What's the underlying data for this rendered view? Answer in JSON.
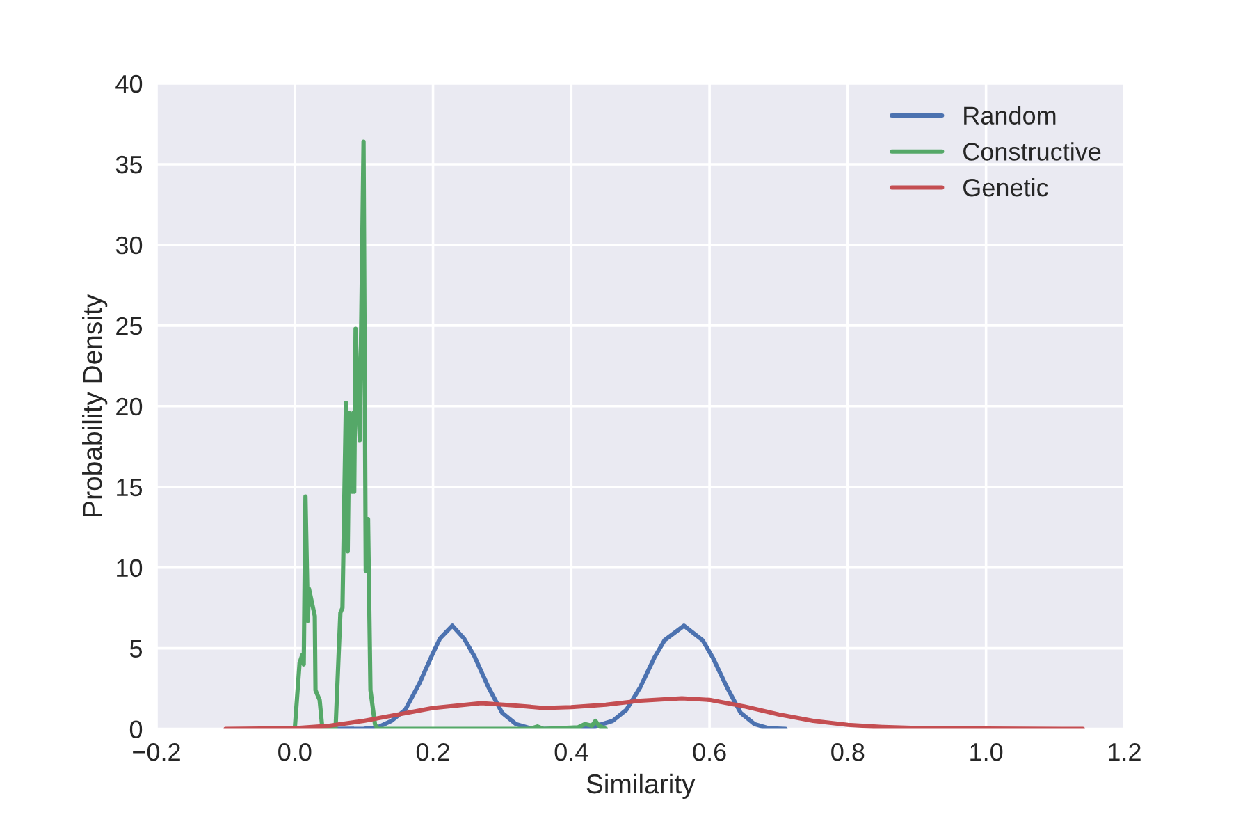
{
  "chart_data": {
    "type": "line",
    "xlabel": "Similarity",
    "ylabel": "Probability Density",
    "xlim": [
      -0.2,
      1.2
    ],
    "ylim": [
      0,
      40
    ],
    "xticks": [
      {
        "value": -0.2,
        "label": "−0.2"
      },
      {
        "value": 0,
        "label": "0.0"
      },
      0.2,
      0.4,
      0.6,
      0.8,
      {
        "value": 1,
        "label": "1.0"
      },
      1.2
    ],
    "yticks": [
      0,
      5,
      10,
      15,
      20,
      25,
      30,
      35,
      40
    ],
    "grid": true,
    "legend": "top right",
    "marker": "none",
    "line_style": "solid",
    "series": [
      {
        "name": "Random",
        "color": "#4c72b0",
        "x": [
          0.05,
          0.1,
          0.12,
          0.14,
          0.16,
          0.18,
          0.2,
          0.21,
          0.228,
          0.245,
          0.26,
          0.28,
          0.3,
          0.32,
          0.34,
          0.36,
          0.4,
          0.43,
          0.46,
          0.48,
          0.5,
          0.52,
          0.535,
          0.563,
          0.59,
          0.605,
          0.625,
          0.645,
          0.665,
          0.685,
          0.71
        ],
        "values": [
          0,
          0.01,
          0.1,
          0.5,
          1.2,
          2.8,
          4.7,
          5.6,
          6.4,
          5.6,
          4.5,
          2.6,
          1.0,
          0.3,
          0.05,
          0,
          0,
          0.1,
          0.5,
          1.2,
          2.6,
          4.4,
          5.5,
          6.4,
          5.5,
          4.4,
          2.6,
          1.0,
          0.3,
          0.05,
          0
        ]
      },
      {
        "name": "Constructive",
        "color": "#55a868",
        "x": [
          0.0,
          0.007,
          0.011,
          0.013,
          0.0155,
          0.019,
          0.0205,
          0.029,
          0.03,
          0.036,
          0.04,
          0.059,
          0.066,
          0.069,
          0.074,
          0.0766,
          0.079,
          0.083,
          0.085,
          0.086,
          0.088,
          0.0915,
          0.094,
          0.0995,
          0.1027,
          0.106,
          0.1095,
          0.116,
          0.12,
          0.34,
          0.351,
          0.36,
          0.41,
          0.42,
          0.43,
          0.435,
          0.44,
          0.45
        ],
        "values": [
          0,
          4.1,
          4.6,
          4.0,
          14.4,
          6.7,
          8.7,
          7.0,
          2.4,
          1.8,
          0,
          0,
          7.2,
          7.5,
          20.2,
          11.0,
          19.6,
          14.7,
          19.6,
          14.7,
          24.8,
          20.2,
          17.9,
          36.4,
          9.8,
          13.0,
          2.4,
          0.3,
          0,
          0,
          0.15,
          0,
          0.1,
          0.3,
          0.2,
          0.5,
          0.2,
          0
        ]
      },
      {
        "name": "Genetic",
        "color": "#c44e52",
        "x": [
          -0.1,
          0.0,
          0.05,
          0.1,
          0.15,
          0.2,
          0.27,
          0.32,
          0.36,
          0.4,
          0.45,
          0.5,
          0.56,
          0.6,
          0.65,
          0.7,
          0.75,
          0.8,
          0.85,
          0.9,
          1.0,
          1.14
        ],
        "values": [
          0,
          0.05,
          0.2,
          0.5,
          0.9,
          1.3,
          1.6,
          1.45,
          1.3,
          1.35,
          1.5,
          1.75,
          1.9,
          1.8,
          1.4,
          0.9,
          0.5,
          0.25,
          0.12,
          0.06,
          0.02,
          0
        ]
      }
    ]
  }
}
